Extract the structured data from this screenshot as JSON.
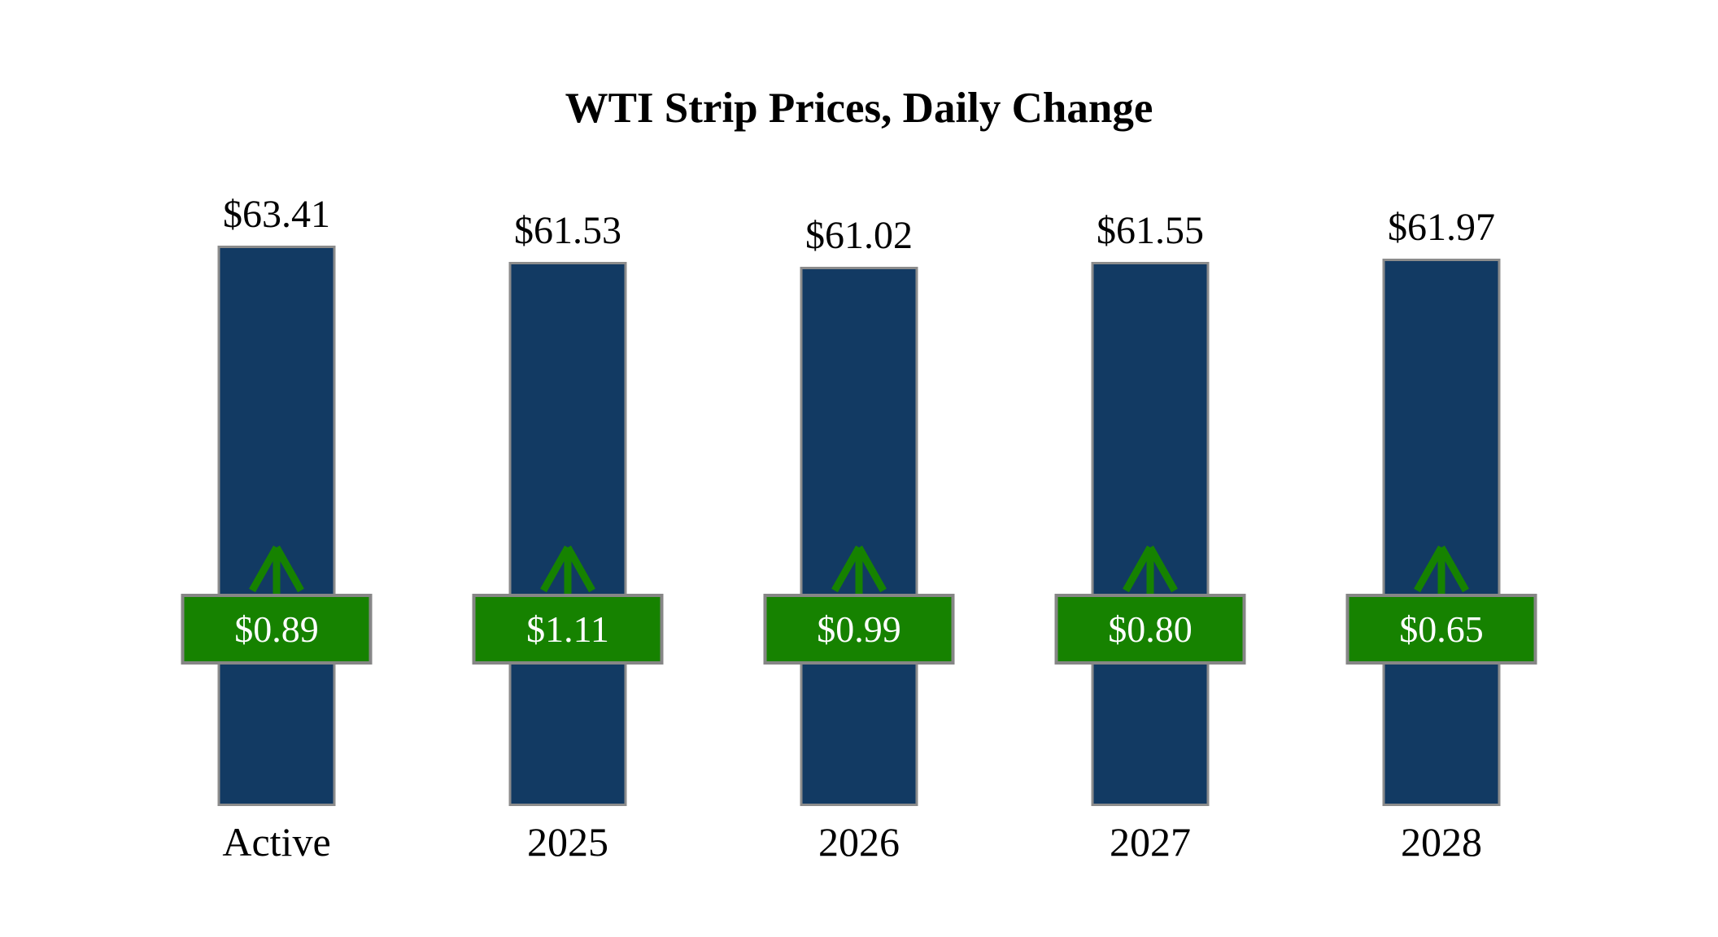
{
  "title": "WTI Strip Prices, Daily Change",
  "colors": {
    "bar_fill": "#123a63",
    "bar_border": "#8c8c8c",
    "badge_fill": "#168200",
    "badge_border": "#868686",
    "badge_text": "#ffffff",
    "arrow_green": "#168200",
    "label_text": "#000000",
    "background": "#ffffff"
  },
  "icons": {
    "change_indicator": "up-arrow-icon"
  },
  "chart_data": {
    "type": "bar",
    "title": "WTI Strip Prices, Daily Change",
    "categories": [
      "Active",
      "2025",
      "2026",
      "2027",
      "2028"
    ],
    "series": [
      {
        "name": "Strip Price",
        "values": [
          63.41,
          61.53,
          61.02,
          61.55,
          61.97
        ],
        "labels": [
          "$63.41",
          "$61.53",
          "$61.02",
          "$61.55",
          "$61.97"
        ],
        "label_position": "above-bar",
        "color": "#123a63"
      },
      {
        "name": "Daily Change",
        "values": [
          0.89,
          1.11,
          0.99,
          0.8,
          0.65
        ],
        "labels": [
          "$0.89",
          "$1.11",
          "$0.99",
          "$0.80",
          "$0.65"
        ],
        "direction": [
          "up",
          "up",
          "up",
          "up",
          "up"
        ],
        "label_position": "badge-overlay",
        "color": "#168200"
      }
    ],
    "xlabel": "",
    "ylabel": "",
    "ylim": [
      0,
      63.41
    ],
    "grid": false,
    "axes_visible": false,
    "legend": "none",
    "annotations": "green up arrows above each badge indicate positive daily change"
  }
}
